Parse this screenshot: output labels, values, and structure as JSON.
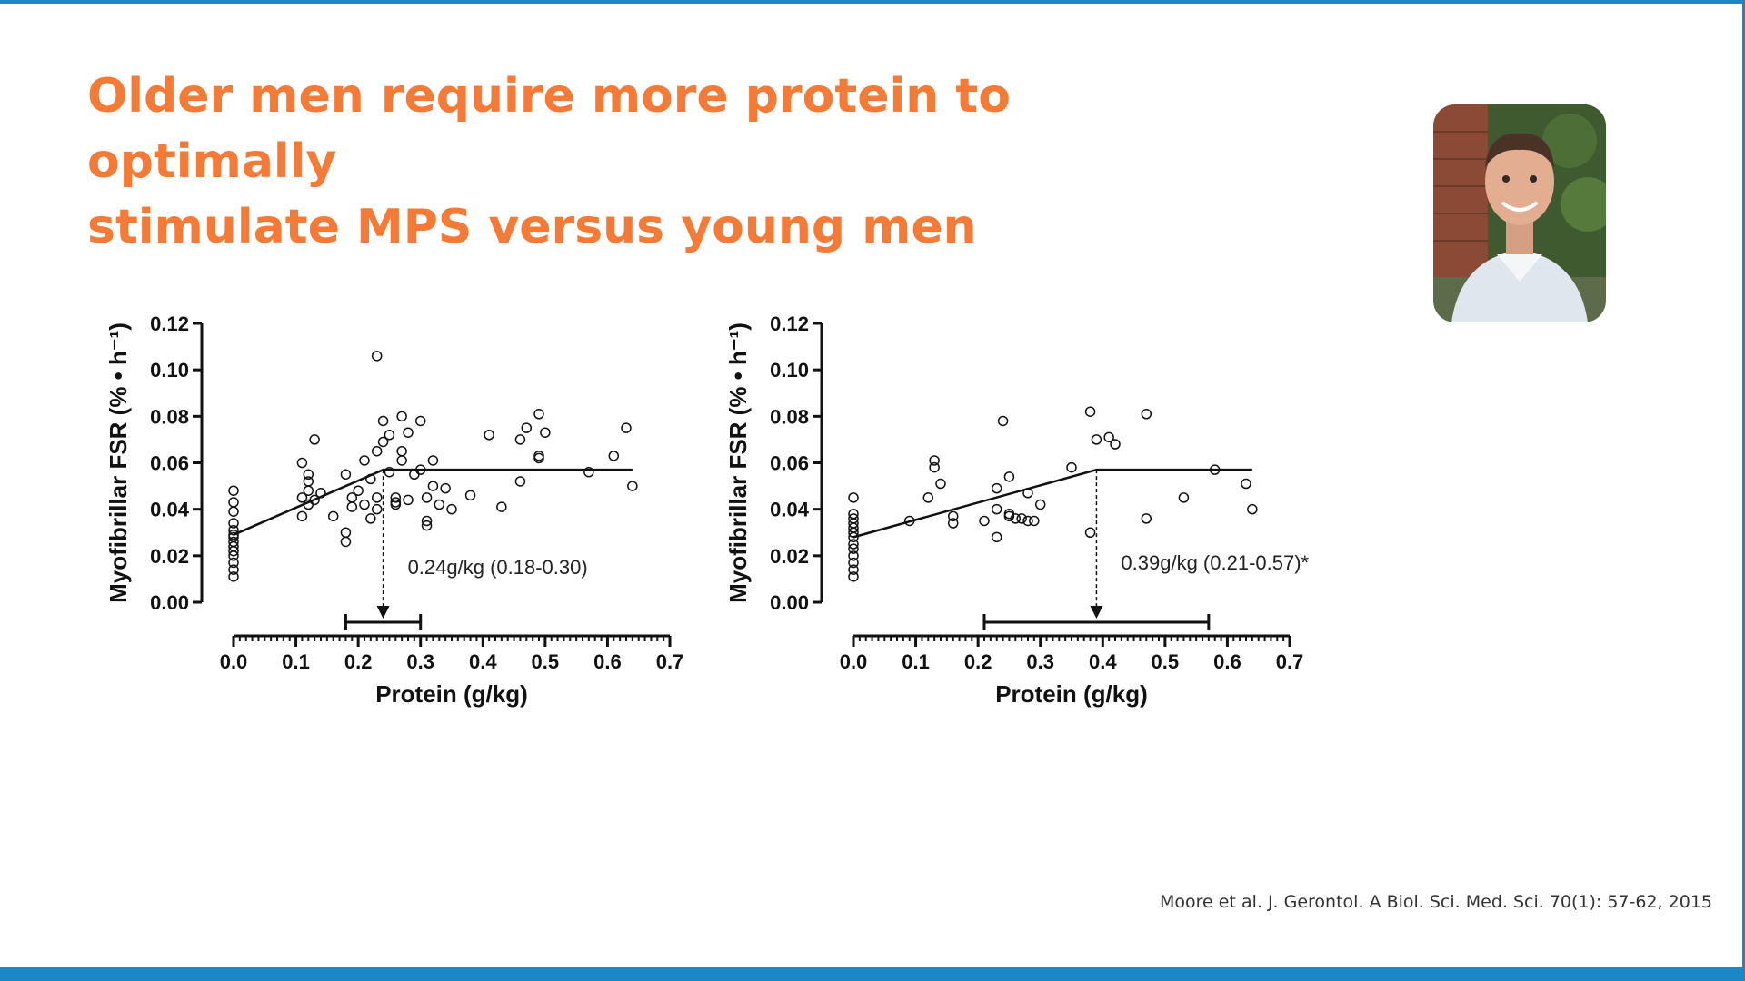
{
  "slide": {
    "title_line1": "Older men require more protein to optimally",
    "title_line2": "stimulate MPS versus young men",
    "citation": "Moore et al.  J. Gerontol. A Biol. Sci. Med. Sci. 70(1): 57-62, 2015",
    "photo_icon": "presenter-photo",
    "colors": {
      "accent": "#f47a36",
      "bar": "#1d86c4",
      "text": "#333333"
    }
  },
  "chart_data": [
    {
      "type": "scatter",
      "title": "",
      "xlabel": "Protein (g/kg)",
      "ylabel": "Myofibrillar FSR (% • h⁻¹)",
      "xlim": [
        0.0,
        0.7
      ],
      "ylim": [
        0.0,
        0.12
      ],
      "x_ticks": [
        "0.0",
        "0.1",
        "0.2",
        "0.3",
        "0.4",
        "0.5",
        "0.6",
        "0.7"
      ],
      "y_ticks": [
        "0.00",
        "0.02",
        "0.04",
        "0.06",
        "0.08",
        "0.10",
        "0.12"
      ],
      "breakpoint": {
        "x": 0.24,
        "y": 0.057,
        "ci": [
          0.18,
          0.3
        ]
      },
      "fit_line": {
        "x": [
          0.0,
          0.24,
          0.64
        ],
        "y": [
          0.029,
          0.057,
          0.057
        ]
      },
      "annotation": "0.24g/kg (0.18-0.30)",
      "points": [
        [
          0.0,
          0.011
        ],
        [
          0.0,
          0.014
        ],
        [
          0.0,
          0.017
        ],
        [
          0.0,
          0.02
        ],
        [
          0.0,
          0.022
        ],
        [
          0.0,
          0.024
        ],
        [
          0.0,
          0.026
        ],
        [
          0.0,
          0.028
        ],
        [
          0.0,
          0.029
        ],
        [
          0.0,
          0.031
        ],
        [
          0.0,
          0.034
        ],
        [
          0.0,
          0.039
        ],
        [
          0.0,
          0.043
        ],
        [
          0.0,
          0.048
        ],
        [
          0.11,
          0.06
        ],
        [
          0.11,
          0.045
        ],
        [
          0.11,
          0.037
        ],
        [
          0.12,
          0.055
        ],
        [
          0.12,
          0.052
        ],
        [
          0.12,
          0.048
        ],
        [
          0.12,
          0.042
        ],
        [
          0.13,
          0.07
        ],
        [
          0.13,
          0.044
        ],
        [
          0.14,
          0.047
        ],
        [
          0.16,
          0.037
        ],
        [
          0.18,
          0.03
        ],
        [
          0.18,
          0.026
        ],
        [
          0.18,
          0.055
        ],
        [
          0.19,
          0.045
        ],
        [
          0.19,
          0.041
        ],
        [
          0.2,
          0.048
        ],
        [
          0.21,
          0.061
        ],
        [
          0.21,
          0.042
        ],
        [
          0.22,
          0.053
        ],
        [
          0.22,
          0.036
        ],
        [
          0.23,
          0.106
        ],
        [
          0.23,
          0.045
        ],
        [
          0.23,
          0.04
        ],
        [
          0.23,
          0.065
        ],
        [
          0.24,
          0.078
        ],
        [
          0.24,
          0.069
        ],
        [
          0.25,
          0.072
        ],
        [
          0.25,
          0.056
        ],
        [
          0.26,
          0.045
        ],
        [
          0.26,
          0.043
        ],
        [
          0.26,
          0.042
        ],
        [
          0.27,
          0.08
        ],
        [
          0.27,
          0.065
        ],
        [
          0.27,
          0.061
        ],
        [
          0.28,
          0.073
        ],
        [
          0.28,
          0.044
        ],
        [
          0.29,
          0.055
        ],
        [
          0.3,
          0.057
        ],
        [
          0.3,
          0.078
        ],
        [
          0.31,
          0.045
        ],
        [
          0.31,
          0.035
        ],
        [
          0.31,
          0.033
        ],
        [
          0.32,
          0.05
        ],
        [
          0.32,
          0.061
        ],
        [
          0.33,
          0.042
        ],
        [
          0.34,
          0.049
        ],
        [
          0.35,
          0.04
        ],
        [
          0.38,
          0.046
        ],
        [
          0.41,
          0.072
        ],
        [
          0.43,
          0.041
        ],
        [
          0.46,
          0.07
        ],
        [
          0.46,
          0.052
        ],
        [
          0.47,
          0.075
        ],
        [
          0.49,
          0.081
        ],
        [
          0.49,
          0.062
        ],
        [
          0.49,
          0.063
        ],
        [
          0.5,
          0.073
        ],
        [
          0.57,
          0.056
        ],
        [
          0.61,
          0.063
        ],
        [
          0.63,
          0.075
        ],
        [
          0.64,
          0.05
        ]
      ]
    },
    {
      "type": "scatter",
      "title": "",
      "xlabel": "Protein (g/kg)",
      "ylabel": "Myofibrillar FSR (% • h⁻¹)",
      "xlim": [
        0.0,
        0.7
      ],
      "ylim": [
        0.0,
        0.12
      ],
      "x_ticks": [
        "0.0",
        "0.1",
        "0.2",
        "0.3",
        "0.4",
        "0.5",
        "0.6",
        "0.7"
      ],
      "y_ticks": [
        "0.00",
        "0.02",
        "0.04",
        "0.06",
        "0.08",
        "0.10",
        "0.12"
      ],
      "breakpoint": {
        "x": 0.39,
        "y": 0.057,
        "ci": [
          0.21,
          0.57
        ]
      },
      "fit_line": {
        "x": [
          0.0,
          0.39,
          0.64
        ],
        "y": [
          0.028,
          0.057,
          0.057
        ]
      },
      "annotation": "0.39g/kg (0.21-0.57)*",
      "points": [
        [
          0.0,
          0.011
        ],
        [
          0.0,
          0.014
        ],
        [
          0.0,
          0.017
        ],
        [
          0.0,
          0.02
        ],
        [
          0.0,
          0.023
        ],
        [
          0.0,
          0.025
        ],
        [
          0.0,
          0.028
        ],
        [
          0.0,
          0.03
        ],
        [
          0.0,
          0.032
        ],
        [
          0.0,
          0.034
        ],
        [
          0.0,
          0.036
        ],
        [
          0.0,
          0.038
        ],
        [
          0.0,
          0.045
        ],
        [
          0.09,
          0.035
        ],
        [
          0.12,
          0.045
        ],
        [
          0.13,
          0.061
        ],
        [
          0.13,
          0.058
        ],
        [
          0.14,
          0.051
        ],
        [
          0.16,
          0.037
        ],
        [
          0.16,
          0.034
        ],
        [
          0.21,
          0.035
        ],
        [
          0.23,
          0.049
        ],
        [
          0.23,
          0.04
        ],
        [
          0.23,
          0.028
        ],
        [
          0.24,
          0.078
        ],
        [
          0.25,
          0.054
        ],
        [
          0.25,
          0.038
        ],
        [
          0.25,
          0.037
        ],
        [
          0.26,
          0.036
        ],
        [
          0.27,
          0.036
        ],
        [
          0.28,
          0.047
        ],
        [
          0.28,
          0.035
        ],
        [
          0.29,
          0.035
        ],
        [
          0.3,
          0.042
        ],
        [
          0.35,
          0.058
        ],
        [
          0.38,
          0.082
        ],
        [
          0.38,
          0.03
        ],
        [
          0.39,
          0.07
        ],
        [
          0.41,
          0.071
        ],
        [
          0.42,
          0.068
        ],
        [
          0.47,
          0.081
        ],
        [
          0.47,
          0.036
        ],
        [
          0.53,
          0.045
        ],
        [
          0.58,
          0.057
        ],
        [
          0.63,
          0.051
        ],
        [
          0.64,
          0.04
        ]
      ]
    }
  ]
}
